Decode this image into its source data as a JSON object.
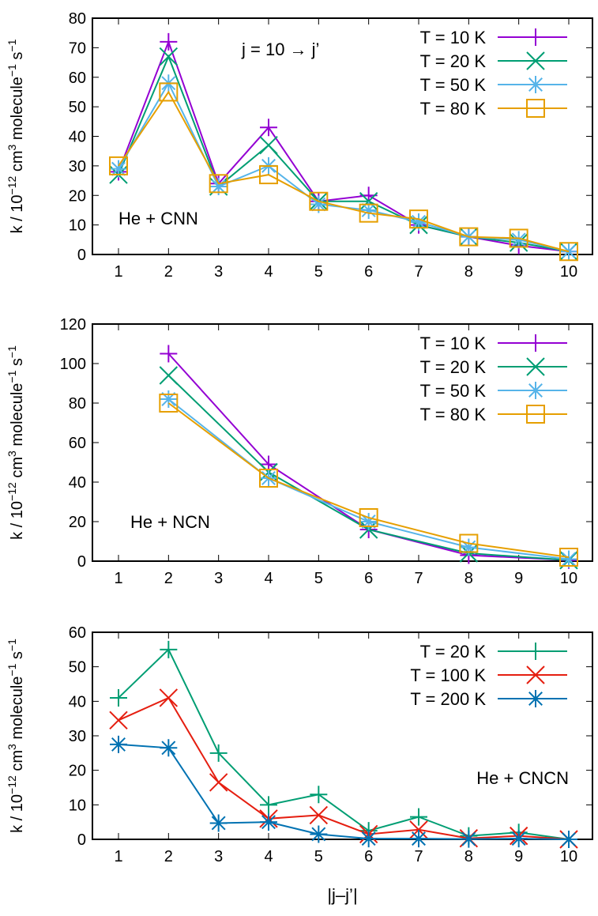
{
  "chart_data": [
    {
      "type": "line",
      "annotation": "j = 10 → j’",
      "label": "He + CNN",
      "ylabel": "k / 10^-12 cm^3 molecule^-1 s^-1",
      "xlabel": "",
      "xlim": [
        0.5,
        10.5
      ],
      "ylim": [
        0,
        80
      ],
      "yticks": [
        0,
        10,
        20,
        30,
        40,
        50,
        60,
        70,
        80
      ],
      "xticks": [
        1,
        2,
        3,
        4,
        5,
        6,
        7,
        8,
        9,
        10
      ],
      "legend_position": "top-right",
      "x": [
        1,
        2,
        3,
        4,
        5,
        6,
        7,
        8,
        9,
        10
      ],
      "series": [
        {
          "name": "T = 10 K",
          "color": "#9400d3",
          "marker": "plus",
          "values": [
            28,
            72,
            24,
            43,
            18,
            20,
            10,
            6,
            3,
            1
          ]
        },
        {
          "name": "T = 20 K",
          "color": "#009e73",
          "marker": "cross",
          "values": [
            27,
            67,
            23,
            37,
            18,
            18,
            10,
            6,
            4,
            1
          ]
        },
        {
          "name": "T = 50 K",
          "color": "#56b4e9",
          "marker": "star",
          "values": [
            29,
            58,
            23,
            30,
            17,
            15,
            11,
            6,
            5,
            1
          ]
        },
        {
          "name": "T = 80 K",
          "color": "#e69f00",
          "marker": "square",
          "values": [
            30,
            55,
            24,
            27,
            18,
            14,
            12,
            6,
            5.5,
            1
          ]
        }
      ]
    },
    {
      "type": "line",
      "label": "He + NCN",
      "ylabel": "k / 10^-12 cm^3 molecule^-1 s^-1",
      "xlabel": "",
      "xlim": [
        0.5,
        10.5
      ],
      "ylim": [
        0,
        120
      ],
      "yticks": [
        0,
        20,
        40,
        60,
        80,
        100,
        120
      ],
      "xticks": [
        1,
        2,
        3,
        4,
        5,
        6,
        7,
        8,
        9,
        10
      ],
      "legend_position": "top-right",
      "x": [
        2,
        4,
        6,
        8,
        10
      ],
      "series": [
        {
          "name": "T = 10 K",
          "color": "#9400d3",
          "marker": "plus",
          "values": [
            105,
            49,
            16,
            3,
            0.5
          ]
        },
        {
          "name": "T = 20 K",
          "color": "#009e73",
          "marker": "cross",
          "values": [
            94,
            45,
            16,
            4,
            0.5
          ]
        },
        {
          "name": "T = 50 K",
          "color": "#56b4e9",
          "marker": "star",
          "values": [
            82,
            42,
            20,
            7,
            1
          ]
        },
        {
          "name": "T = 80 K",
          "color": "#e69f00",
          "marker": "square",
          "values": [
            80,
            42,
            22,
            9,
            2
          ]
        }
      ]
    },
    {
      "type": "line",
      "label": "He + CNCN",
      "ylabel": "k / 10^-12 cm^3 molecule^-1 s^-1",
      "xlabel": "|j–j’|",
      "xlim": [
        0.5,
        10.5
      ],
      "ylim": [
        0,
        60
      ],
      "yticks": [
        0,
        10,
        20,
        30,
        40,
        50,
        60
      ],
      "xticks": [
        1,
        2,
        3,
        4,
        5,
        6,
        7,
        8,
        9,
        10
      ],
      "legend_position": "top-right",
      "x": [
        1,
        2,
        3,
        4,
        5,
        6,
        7,
        8,
        9,
        10
      ],
      "series": [
        {
          "name": "T = 20 K",
          "color": "#009e73",
          "marker": "plus",
          "values": [
            41,
            55,
            25,
            10,
            13,
            2.5,
            6.5,
            1,
            2,
            0
          ]
        },
        {
          "name": "T = 100 K",
          "color": "#e51e10",
          "marker": "cross",
          "values": [
            34.5,
            41,
            16.5,
            6,
            7,
            1.5,
            2.8,
            0.3,
            1,
            0
          ]
        },
        {
          "name": "T = 200 K",
          "color": "#0072b2",
          "marker": "star",
          "values": [
            27.5,
            26.5,
            4.7,
            5,
            1.5,
            0.2,
            0.2,
            0.1,
            0.2,
            0
          ]
        }
      ]
    }
  ]
}
